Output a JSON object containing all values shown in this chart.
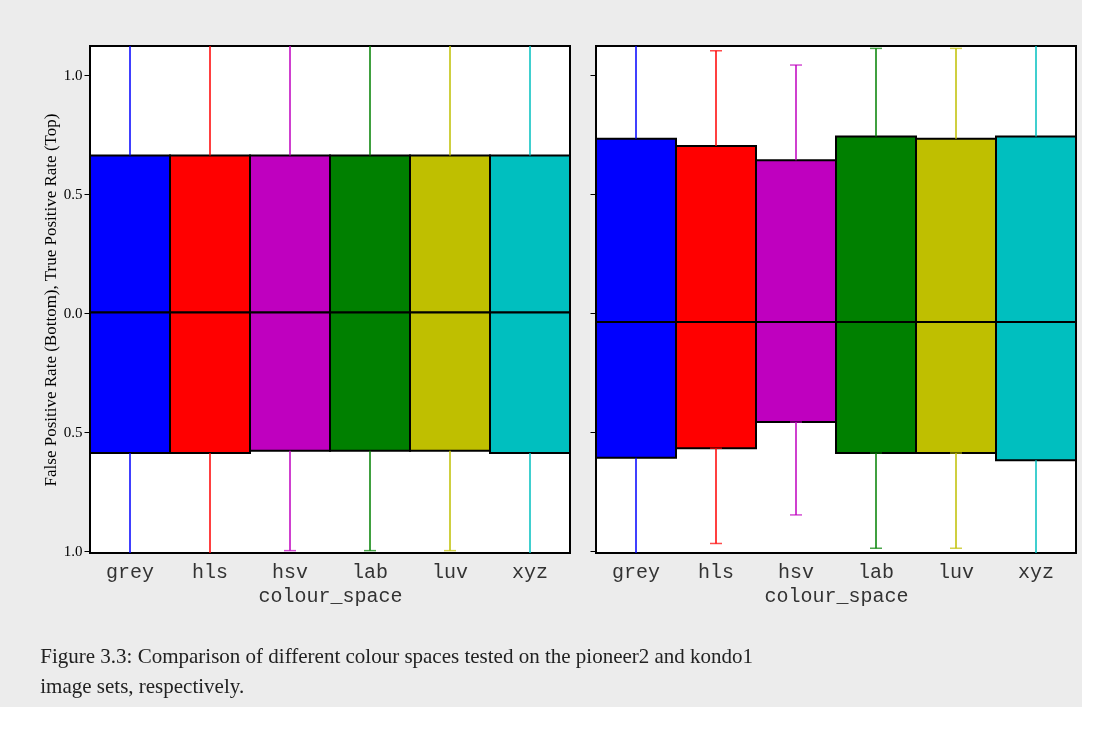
{
  "chart_data": [
    {
      "type": "bar",
      "categories": [
        "grey",
        "hls",
        "hsv",
        "lab",
        "luv",
        "xyz"
      ],
      "xlabel": "colour_space",
      "ylabel": "False Positive Rate (Bottom), True Positive Rate (Top)",
      "ylim": [
        -1.01,
        1.12
      ],
      "yticks": [
        {
          "value": -1.0,
          "label": "1.0"
        },
        {
          "value": -0.5,
          "label": "0.5"
        },
        {
          "value": 0.0,
          "label": "0.0"
        },
        {
          "value": 0.5,
          "label": "0.5"
        },
        {
          "value": 1.0,
          "label": "1.0"
        }
      ],
      "series": [
        {
          "colors": [
            "#0000ff",
            "#ff0000",
            "#bf00bf",
            "#008000",
            "#bfbf00",
            "#00bfbf"
          ],
          "base": [
            0,
            0,
            0,
            0,
            0,
            0
          ],
          "values": [
            0.66,
            0.66,
            0.66,
            0.66,
            0.66,
            0.66
          ],
          "errors": [
            [
              0.66,
              1.12
            ],
            [
              0.66,
              1.12
            ],
            [
              0.66,
              1.12
            ],
            [
              0.66,
              1.12
            ],
            [
              0.66,
              1.12
            ],
            [
              0.66,
              1.12
            ]
          ]
        },
        {
          "colors": [
            "#0000ff",
            "#ff0000",
            "#bf00bf",
            "#008000",
            "#bfbf00",
            "#00bfbf"
          ],
          "base": [
            0,
            0,
            0,
            0,
            0,
            0
          ],
          "values": [
            -0.59,
            -0.59,
            -0.58,
            -0.58,
            -0.58,
            -0.59
          ],
          "errors": [
            [
              -1.01,
              -0.59
            ],
            [
              -1.01,
              -0.59
            ],
            [
              -1.0,
              -0.58
            ],
            [
              -1.0,
              -0.58
            ],
            [
              -1.0,
              -0.58
            ],
            [
              -1.01,
              -0.59
            ]
          ]
        }
      ],
      "annotations": [
        "Figure 3.3: Comparison of different colour spaces tested on the pioneer2 and kondo1 image sets, respectively."
      ]
    },
    {
      "type": "bar",
      "categories": [
        "grey",
        "hls",
        "hsv",
        "lab",
        "luv",
        "xyz"
      ],
      "xlabel": "colour_space",
      "ylim": [
        -1.01,
        1.12
      ],
      "yticks": [
        {
          "value": -1.0,
          "label": null
        },
        {
          "value": -0.5,
          "label": null
        },
        {
          "value": 0.0,
          "label": null
        },
        {
          "value": 0.5,
          "label": null
        },
        {
          "value": 1.0,
          "label": null
        }
      ],
      "tick_labels": "x",
      "series": [
        {
          "colors": [
            "#0000ff",
            "#ff0000",
            "#bf00bf",
            "#008000",
            "#bfbf00",
            "#00bfbf"
          ],
          "base": [
            -0.04,
            -0.04,
            -0.04,
            -0.04,
            -0.04,
            -0.04
          ],
          "values": [
            0.77,
            0.74,
            0.68,
            0.78,
            0.77,
            0.78
          ],
          "errors": [
            [
              0.73,
              1.12
            ],
            [
              0.7,
              1.1
            ],
            [
              0.64,
              1.04
            ],
            [
              0.74,
              1.11
            ],
            [
              0.73,
              1.11
            ],
            [
              0.74,
              1.12
            ]
          ]
        },
        {
          "colors": [
            "#0000ff",
            "#ff0000",
            "#bf00bf",
            "#008000",
            "#bfbf00",
            "#00bfbf"
          ],
          "base": [
            -0.04,
            -0.04,
            -0.04,
            -0.04,
            -0.04,
            -0.04
          ],
          "values": [
            -0.57,
            -0.53,
            -0.42,
            -0.55,
            -0.55,
            -0.58
          ],
          "errors": [
            [
              -1.01,
              -0.61
            ],
            [
              -0.97,
              -0.57
            ],
            [
              -0.85,
              -0.46
            ],
            [
              -0.99,
              -0.59
            ],
            [
              -0.99,
              -0.59
            ],
            [
              -1.01,
              -0.62
            ]
          ]
        }
      ]
    }
  ]
}
